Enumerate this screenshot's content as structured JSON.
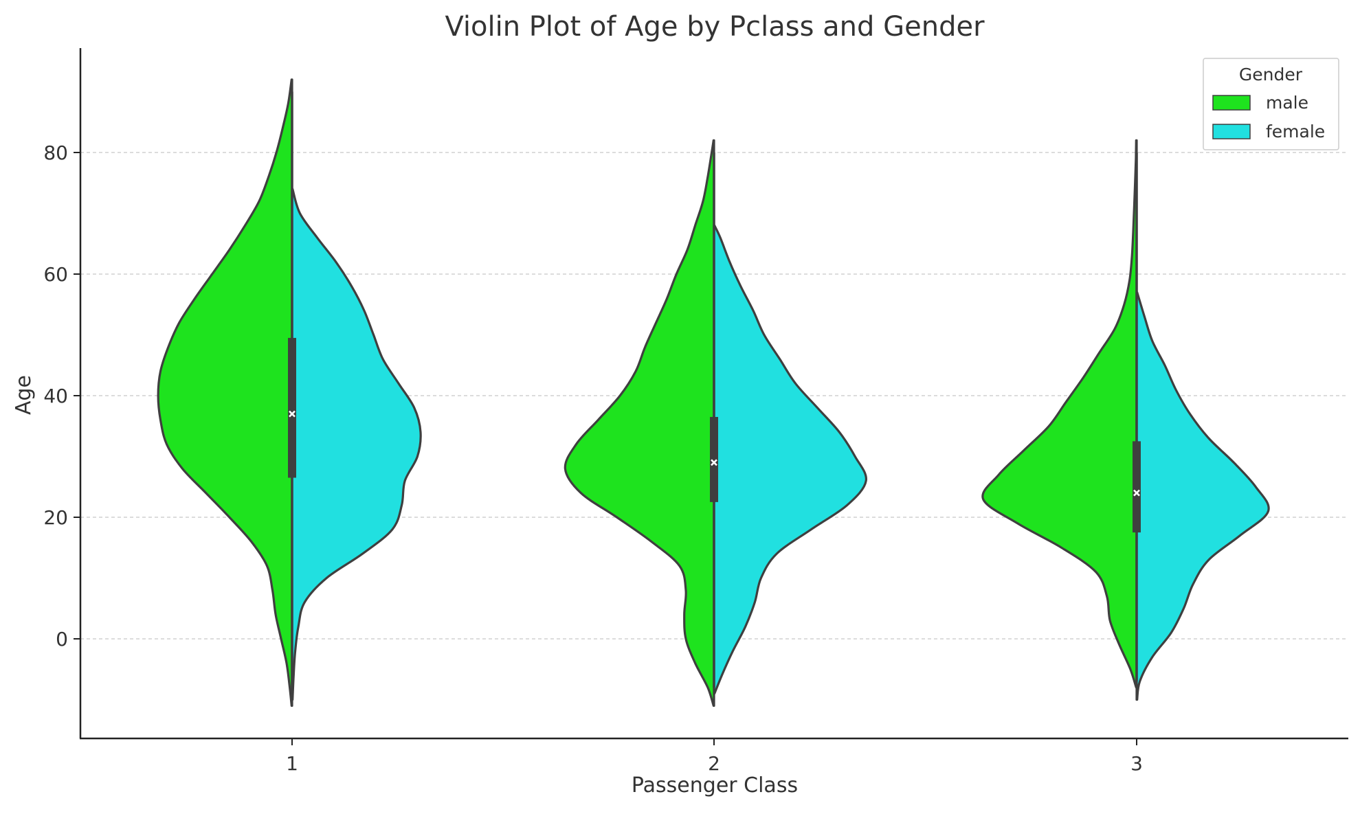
{
  "chart_data": {
    "type": "violin",
    "title": "Violin Plot of Age by Pclass and Gender",
    "xlabel": "Passenger Class",
    "ylabel": "Age",
    "ylim": [
      -16,
      97
    ],
    "yticks": [
      0,
      20,
      40,
      60,
      80
    ],
    "grid": "horizontal dashed",
    "categories": [
      "1",
      "2",
      "3"
    ],
    "colors": {
      "male": "#1ee31e",
      "female": "#21e0e0",
      "outline": "#3f3f3f"
    },
    "legend": {
      "title": "Gender",
      "position": "top-right",
      "entries": [
        "male",
        "female"
      ]
    },
    "violins": [
      {
        "category": "1",
        "quartiles": [
          26.5,
          37,
          49.5
        ],
        "male": {
          "range": [
            -11,
            92
          ],
          "half_width": [
            [
              -11,
              0.003
            ],
            [
              -8,
              0.015
            ],
            [
              -4,
              0.035
            ],
            [
              0,
              0.07
            ],
            [
              4,
              0.105
            ],
            [
              8,
              0.125
            ],
            [
              12,
              0.16
            ],
            [
              16,
              0.26
            ],
            [
              20,
              0.4
            ],
            [
              24,
              0.55
            ],
            [
              28,
              0.7
            ],
            [
              32,
              0.8
            ],
            [
              36,
              0.84
            ],
            [
              40,
              0.855
            ],
            [
              44,
              0.84
            ],
            [
              48,
              0.79
            ],
            [
              52,
              0.72
            ],
            [
              56,
              0.62
            ],
            [
              60,
              0.51
            ],
            [
              64,
              0.4
            ],
            [
              68,
              0.3
            ],
            [
              72,
              0.21
            ],
            [
              76,
              0.15
            ],
            [
              80,
              0.1
            ],
            [
              84,
              0.06
            ],
            [
              88,
              0.025
            ],
            [
              92,
              0.003
            ]
          ]
        },
        "female": {
          "range": [
            -10,
            74
          ],
          "half_width": [
            [
              -10,
              0.003
            ],
            [
              -6,
              0.01
            ],
            [
              -2,
              0.02
            ],
            [
              2,
              0.04
            ],
            [
              6,
              0.08
            ],
            [
              10,
              0.22
            ],
            [
              14,
              0.45
            ],
            [
              18,
              0.64
            ],
            [
              22,
              0.7
            ],
            [
              26,
              0.72
            ],
            [
              30,
              0.8
            ],
            [
              34,
              0.82
            ],
            [
              38,
              0.78
            ],
            [
              42,
              0.68
            ],
            [
              46,
              0.58
            ],
            [
              50,
              0.52
            ],
            [
              54,
              0.46
            ],
            [
              58,
              0.38
            ],
            [
              62,
              0.28
            ],
            [
              66,
              0.16
            ],
            [
              70,
              0.05
            ],
            [
              74,
              0.003
            ]
          ]
        }
      },
      {
        "category": "2",
        "quartiles": [
          22.5,
          29,
          36.5
        ],
        "male": {
          "range": [
            -11,
            82
          ],
          "half_width": [
            [
              -11,
              0.003
            ],
            [
              -8,
              0.04
            ],
            [
              -4,
              0.12
            ],
            [
              0,
              0.18
            ],
            [
              4,
              0.19
            ],
            [
              8,
              0.18
            ],
            [
              12,
              0.22
            ],
            [
              16,
              0.4
            ],
            [
              20,
              0.62
            ],
            [
              24,
              0.85
            ],
            [
              28,
              0.95
            ],
            [
              32,
              0.88
            ],
            [
              36,
              0.74
            ],
            [
              40,
              0.6
            ],
            [
              44,
              0.5
            ],
            [
              48,
              0.44
            ],
            [
              52,
              0.37
            ],
            [
              56,
              0.3
            ],
            [
              60,
              0.24
            ],
            [
              64,
              0.17
            ],
            [
              68,
              0.12
            ],
            [
              72,
              0.07
            ],
            [
              76,
              0.04
            ],
            [
              80,
              0.015
            ],
            [
              82,
              0.003
            ]
          ]
        },
        "female": {
          "range": [
            -9,
            68
          ],
          "half_width": [
            [
              -9,
              0.003
            ],
            [
              -6,
              0.05
            ],
            [
              -2,
              0.12
            ],
            [
              2,
              0.2
            ],
            [
              6,
              0.26
            ],
            [
              10,
              0.3
            ],
            [
              14,
              0.4
            ],
            [
              18,
              0.62
            ],
            [
              22,
              0.85
            ],
            [
              26,
              0.97
            ],
            [
              30,
              0.9
            ],
            [
              34,
              0.8
            ],
            [
              38,
              0.66
            ],
            [
              42,
              0.52
            ],
            [
              46,
              0.42
            ],
            [
              50,
              0.32
            ],
            [
              54,
              0.25
            ],
            [
              58,
              0.17
            ],
            [
              62,
              0.1
            ],
            [
              66,
              0.04
            ],
            [
              68,
              0.003
            ]
          ]
        }
      },
      {
        "category": "3",
        "quartiles": [
          17.5,
          24,
          32.5
        ],
        "male": {
          "range": [
            -8,
            82
          ],
          "half_width": [
            [
              -8,
              0.003
            ],
            [
              -5,
              0.04
            ],
            [
              -1,
              0.11
            ],
            [
              3,
              0.17
            ],
            [
              7,
              0.19
            ],
            [
              11,
              0.26
            ],
            [
              15,
              0.48
            ],
            [
              19,
              0.76
            ],
            [
              23,
              0.98
            ],
            [
              27,
              0.88
            ],
            [
              31,
              0.72
            ],
            [
              35,
              0.56
            ],
            [
              39,
              0.45
            ],
            [
              43,
              0.34
            ],
            [
              47,
              0.24
            ],
            [
              51,
              0.14
            ],
            [
              55,
              0.08
            ],
            [
              59,
              0.045
            ],
            [
              63,
              0.03
            ],
            [
              67,
              0.022
            ],
            [
              71,
              0.016
            ],
            [
              75,
              0.01
            ],
            [
              79,
              0.005
            ],
            [
              82,
              0.003
            ]
          ]
        },
        "female": {
          "range": [
            -10,
            57
          ],
          "half_width": [
            [
              -10,
              0.003
            ],
            [
              -7,
              0.02
            ],
            [
              -3,
              0.1
            ],
            [
              1,
              0.22
            ],
            [
              5,
              0.3
            ],
            [
              9,
              0.36
            ],
            [
              13,
              0.46
            ],
            [
              17,
              0.66
            ],
            [
              21,
              0.84
            ],
            [
              25,
              0.76
            ],
            [
              29,
              0.62
            ],
            [
              33,
              0.46
            ],
            [
              37,
              0.34
            ],
            [
              41,
              0.25
            ],
            [
              45,
              0.18
            ],
            [
              49,
              0.1
            ],
            [
              53,
              0.05
            ],
            [
              57,
              0.003
            ]
          ]
        }
      }
    ]
  }
}
